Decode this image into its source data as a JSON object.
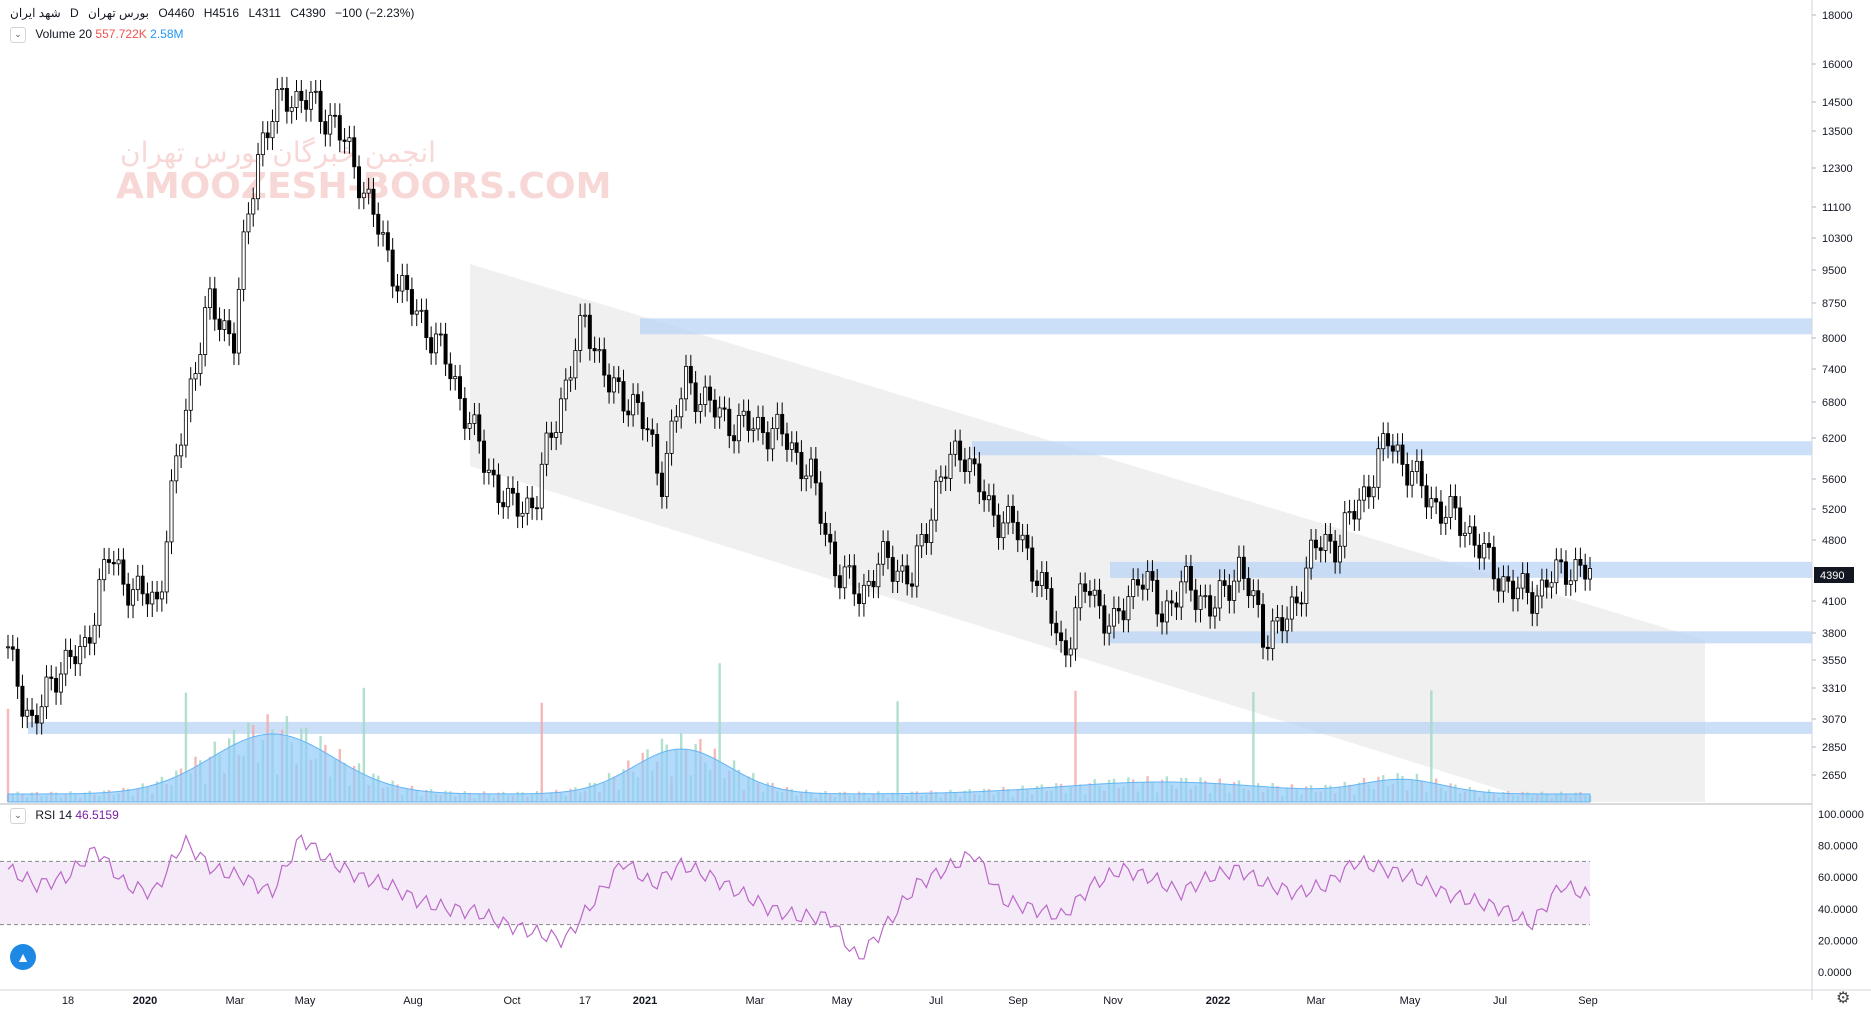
{
  "header": {
    "symbol": "شهد ایران",
    "interval": "D",
    "exchange": "بورس تهران",
    "open": "O4460",
    "high": "H4516",
    "low": "L4311",
    "close": "C4390",
    "change": "−100 (−2.23%)"
  },
  "volume_legend": {
    "label": "Volume 20",
    "value_red": "557.722K",
    "value_blue": "2.58M"
  },
  "rsi_legend": {
    "label": "RSI 14",
    "value": "46.5159"
  },
  "watermark": {
    "line1": "انجمن خبرگان بورس تهران",
    "line2": "AMOOZESH-BOORS.COM"
  },
  "last_price_tag": "4390",
  "icons": {
    "logo": "tradingview-logo-icon",
    "settings": "gear-icon",
    "collapse": "chevron-down-icon"
  },
  "chart_data": {
    "type": "candlestick",
    "price_axis_ticks": [
      "18000",
      "16000",
      "14500",
      "13500",
      "12300",
      "11100",
      "10300",
      "9500",
      "8750",
      "8000",
      "7400",
      "6800",
      "6200",
      "5600",
      "5200",
      "4800",
      "4390",
      "4100",
      "3800",
      "3550",
      "3310",
      "3070",
      "2850",
      "2650"
    ],
    "rsi_axis_ticks": [
      "100.0000",
      "80.0000",
      "60.0000",
      "40.0000",
      "20.0000",
      "0.0000"
    ],
    "time_axis_labels": [
      "18",
      "2020",
      "Mar",
      "May",
      "Aug",
      "Oct",
      "17",
      "2021",
      "Mar",
      "May",
      "Jul",
      "Sep",
      "Nov",
      "2022",
      "Mar",
      "May",
      "Jul",
      "Sep"
    ],
    "close_series_approx": [
      3600,
      3000,
      3500,
      3600,
      4600,
      4200,
      4100,
      6500,
      8700,
      8000,
      13000,
      14800,
      14500,
      13800,
      12000,
      10000,
      8700,
      8000,
      6900,
      5800,
      5200,
      5300,
      6800,
      8400,
      7000,
      6800,
      5600,
      7200,
      6700,
      6400,
      6400,
      6200,
      5600,
      4400,
      4200,
      4600,
      4300,
      5500,
      6100,
      5200,
      5000,
      4400,
      3600,
      4300,
      3800,
      4400,
      4000,
      4300,
      4000,
      4500,
      3800,
      3900,
      4700,
      4800,
      5400,
      6200,
      5600,
      5200,
      5000,
      4500,
      4200,
      4200,
      4500,
      4390
    ],
    "rsi_band": [
      30,
      70
    ],
    "rsi_series_approx": [
      65,
      55,
      60,
      78,
      55,
      50,
      83,
      65,
      60,
      50,
      85,
      70,
      60,
      55,
      45,
      40,
      38,
      30,
      25,
      20,
      45,
      70,
      55,
      68,
      60,
      50,
      40,
      35,
      35,
      8,
      30,
      55,
      65,
      75,
      45,
      40,
      35,
      55,
      65,
      60,
      50,
      60,
      65,
      55,
      50,
      55,
      70,
      65,
      60,
      50,
      45,
      40,
      30,
      55,
      48
    ]
  }
}
